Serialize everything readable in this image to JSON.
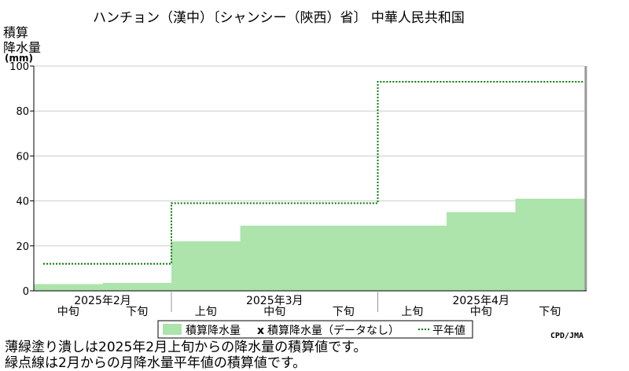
{
  "chart_data": {
    "type": "bar",
    "title": "ハンチョン（漢中）〔シャンシー（陝西）省〕 中華人民共和国",
    "ylabel_lines": [
      "積算",
      "降水量"
    ],
    "yunit": "(mm)",
    "ylim": [
      0,
      100
    ],
    "yticks": [
      0,
      20,
      40,
      60,
      80,
      100
    ],
    "grid": true,
    "categories": [
      "2025年2月 中旬",
      "2025年2月 下旬",
      "2025年3月 上旬",
      "2025年3月 中旬",
      "2025年3月 下旬",
      "2025年4月 上旬",
      "2025年4月 中旬",
      "2025年4月 下旬"
    ],
    "dekad_labels": [
      "中旬",
      "下旬",
      "上旬",
      "中旬",
      "下旬",
      "上旬",
      "中旬",
      "下旬"
    ],
    "months": [
      {
        "label": "2025年2月",
        "span": [
          0,
          2
        ]
      },
      {
        "label": "2025年3月",
        "span": [
          2,
          5
        ]
      },
      {
        "label": "2025年4月",
        "span": [
          5,
          8
        ]
      }
    ],
    "series": [
      {
        "name": "積算降水量",
        "style": "area",
        "color": "#ace4ac",
        "values": [
          3,
          3.5,
          22,
          29,
          29,
          29,
          35,
          41
        ]
      },
      {
        "name": "積算降水量（データなし）",
        "style": "missing",
        "values": [
          null,
          null,
          null,
          null,
          null,
          null,
          null,
          null
        ]
      },
      {
        "name": "平年値",
        "style": "dotted-step",
        "color": "#007700",
        "values": [
          12,
          12,
          39,
          39,
          39,
          93,
          93,
          93
        ]
      }
    ],
    "legend_marker_missing": "x",
    "legend_placement": "bottom"
  },
  "credit": "CPD/JMA",
  "notes": [
    "薄緑塗り潰しは2025年2月上旬からの降水量の積算値です。",
    "緑点線は2月からの月降水量平年値の積算値です。"
  ]
}
